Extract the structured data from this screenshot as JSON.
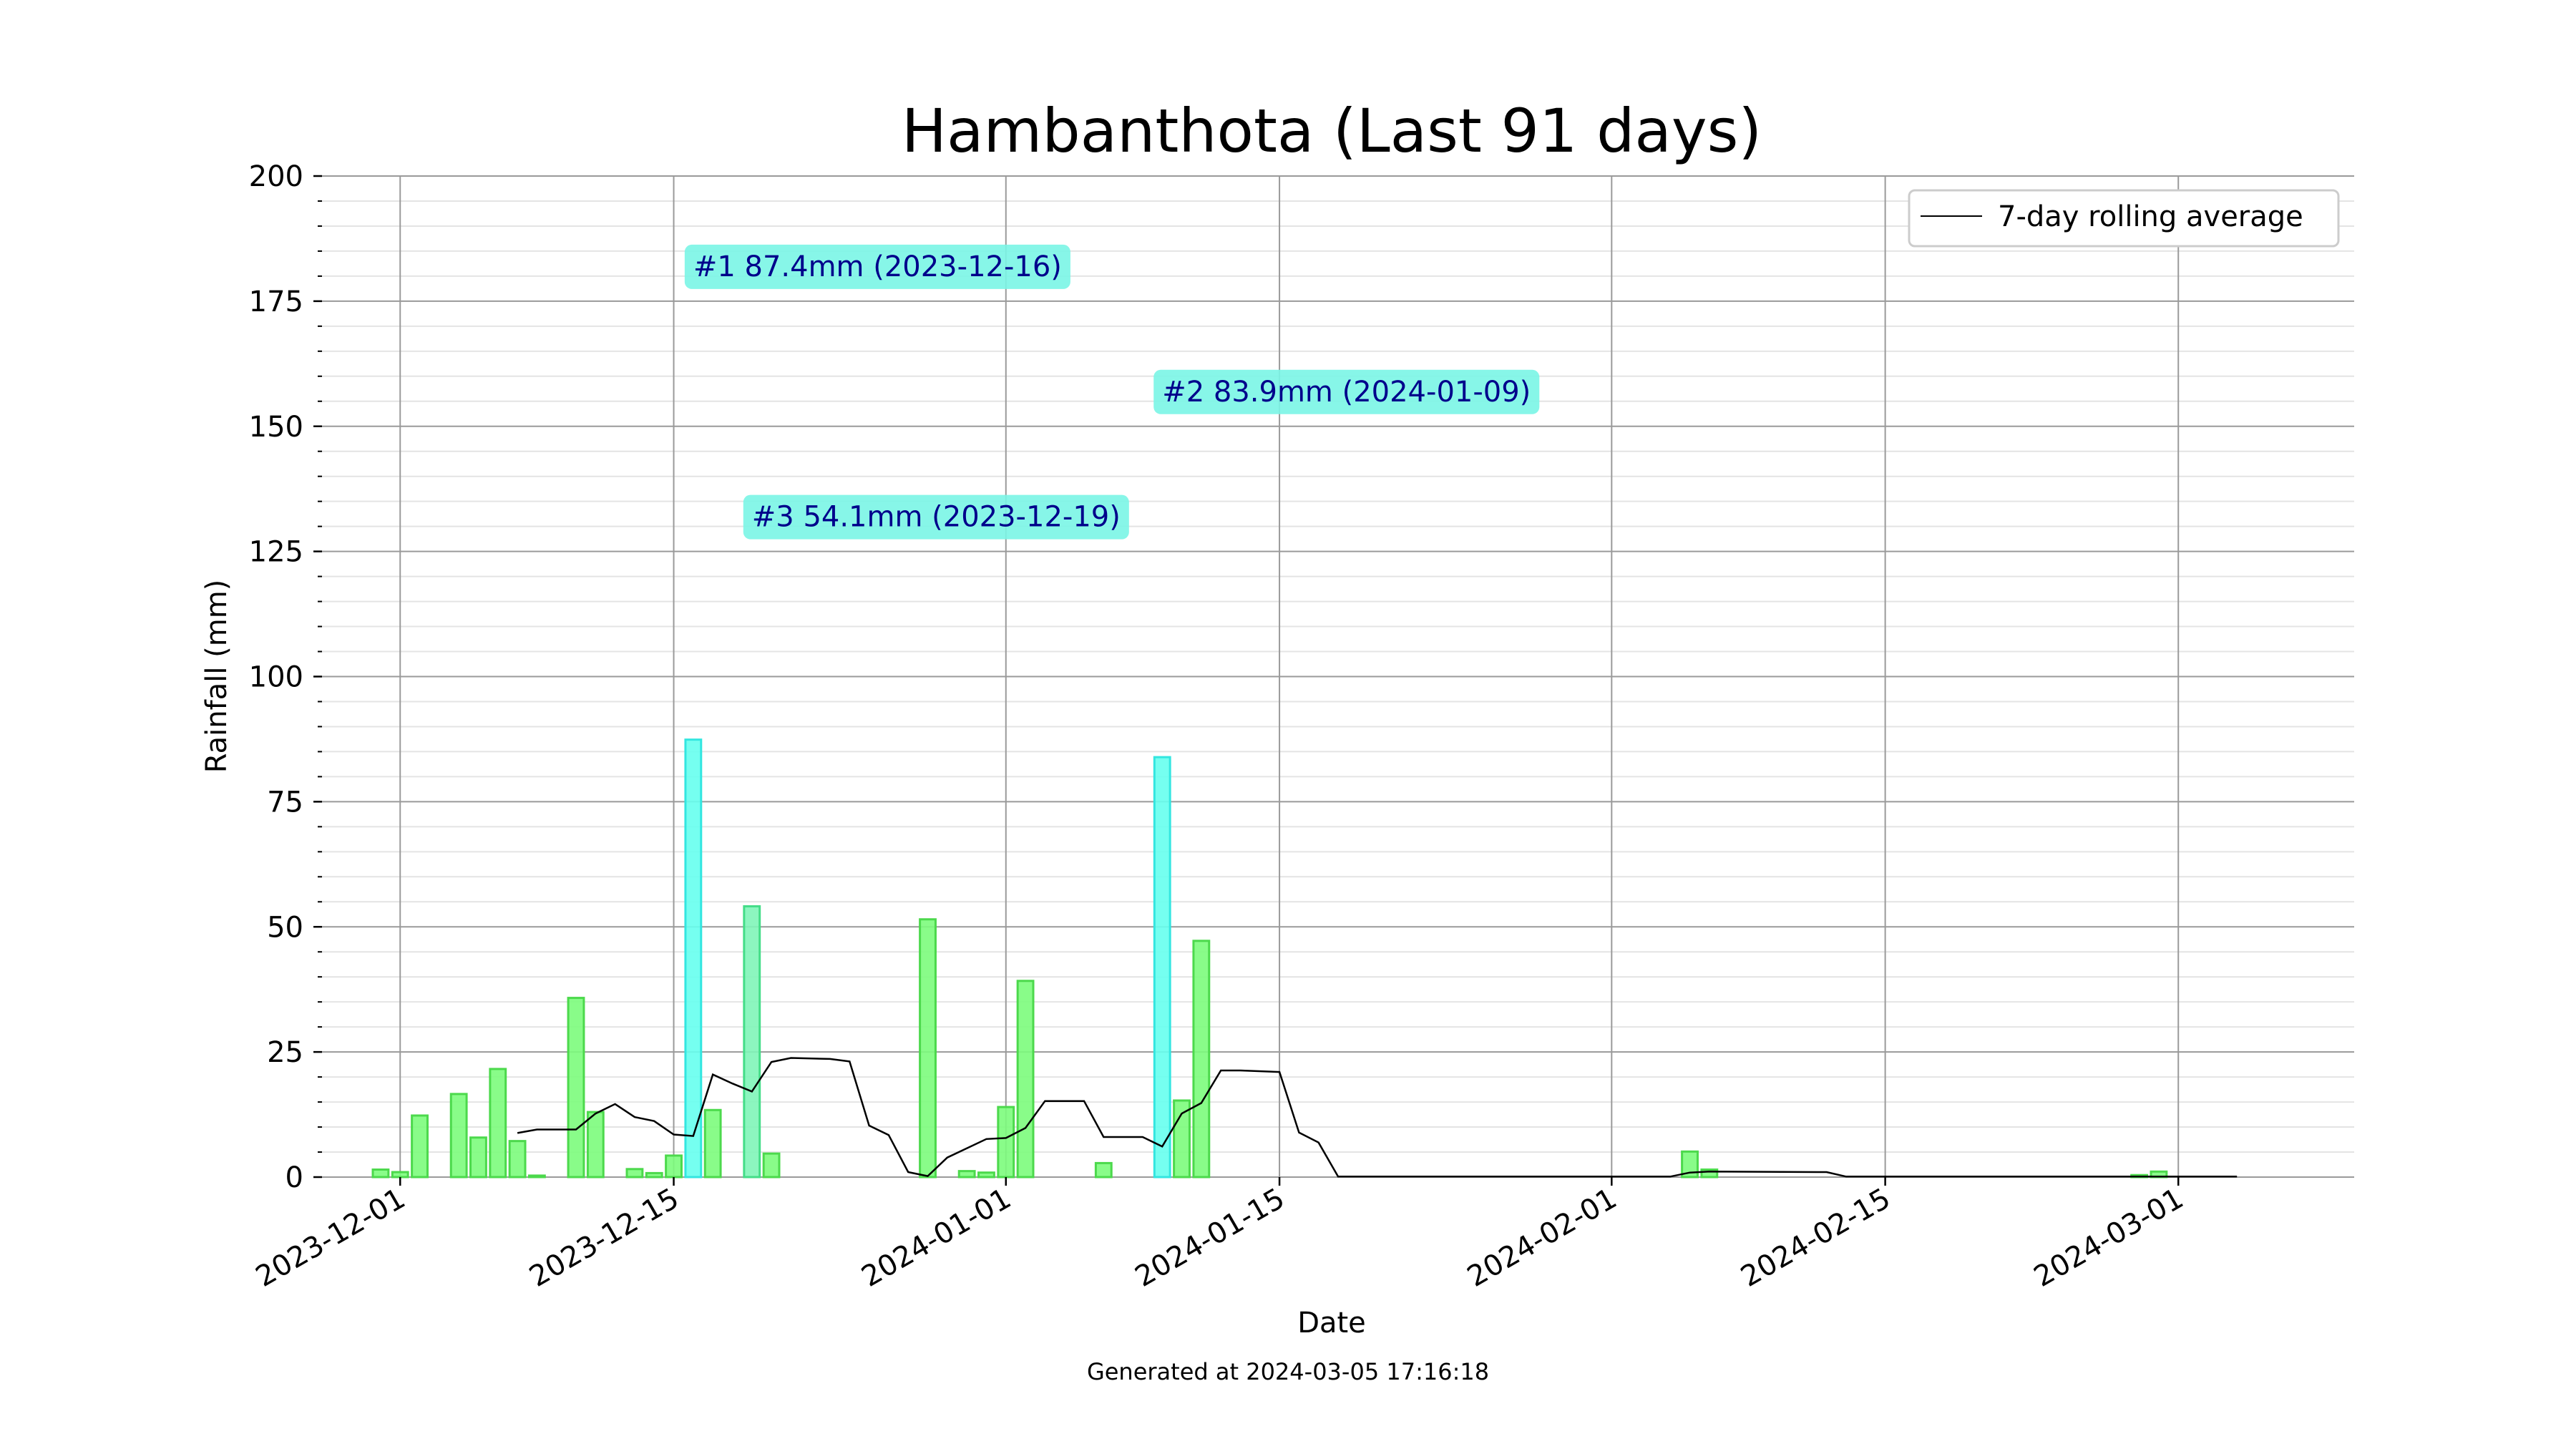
{
  "chart_data": {
    "type": "bar",
    "title": "Hambanthota (Last 91 days)",
    "xlabel": "Date",
    "ylabel": "Rainfall (mm)",
    "ylim": [
      0,
      200
    ],
    "xlim": [
      "2023-11-27",
      "2024-03-10"
    ],
    "yticks": [
      0,
      25,
      50,
      75,
      100,
      125,
      150,
      175,
      200
    ],
    "xticks": [
      "2023-12-01",
      "2023-12-15",
      "2024-01-01",
      "2024-01-15",
      "2024-02-01",
      "2024-02-15",
      "2024-03-01"
    ],
    "grid": true,
    "legend": {
      "position": "top-right",
      "entries": [
        "7-day rolling average"
      ]
    },
    "colors": {
      "bar": "#7cfc7c",
      "bar_edge": "#4cd94c",
      "highlight1": "#66ffee",
      "highlight3": "#7ff5b8",
      "annotation_box": "#7af5e6",
      "annotation_text": "#00008b",
      "line": "#000000"
    },
    "series": [
      {
        "name": "Rainfall (mm)",
        "x": [
          "2023-11-30",
          "2023-12-01",
          "2023-12-02",
          "2023-12-04",
          "2023-12-05",
          "2023-12-06",
          "2023-12-07",
          "2023-12-08",
          "2023-12-10",
          "2023-12-11",
          "2023-12-13",
          "2023-12-14",
          "2023-12-15",
          "2023-12-16",
          "2023-12-17",
          "2023-12-19",
          "2023-12-20",
          "2023-12-28",
          "2023-12-30",
          "2023-12-31",
          "2024-01-01",
          "2024-01-02",
          "2024-01-06",
          "2024-01-09",
          "2024-01-10",
          "2024-01-11",
          "2024-02-05",
          "2024-02-06",
          "2024-02-28",
          "2024-02-29"
        ],
        "values": [
          1.5,
          1.0,
          12.3,
          16.6,
          7.9,
          21.6,
          7.2,
          0.3,
          35.8,
          13.0,
          1.6,
          0.8,
          4.3,
          87.4,
          13.4,
          54.1,
          4.7,
          51.5,
          1.2,
          0.9,
          14.0,
          39.2,
          2.8,
          83.9,
          15.3,
          47.2,
          5.1,
          1.5,
          0.4,
          1.1
        ]
      },
      {
        "name": "7-day rolling average",
        "x": [
          "2023-12-07",
          "2023-12-08",
          "2023-12-10",
          "2023-12-11",
          "2023-12-12",
          "2023-12-13",
          "2023-12-14",
          "2023-12-15",
          "2023-12-16",
          "2023-12-17",
          "2023-12-18",
          "2023-12-19",
          "2023-12-20",
          "2023-12-21",
          "2023-12-23",
          "2023-12-24",
          "2023-12-25",
          "2023-12-26",
          "2023-12-27",
          "2023-12-28",
          "2023-12-29",
          "2023-12-31",
          "2024-01-01",
          "2024-01-02",
          "2024-01-03",
          "2024-01-05",
          "2024-01-06",
          "2024-01-08",
          "2024-01-09",
          "2024-01-10",
          "2024-01-11",
          "2024-01-12",
          "2024-01-13",
          "2024-01-15",
          "2024-01-16",
          "2024-01-17",
          "2024-01-18",
          "2024-02-04",
          "2024-02-05",
          "2024-02-06",
          "2024-02-12",
          "2024-02-13",
          "2024-03-04"
        ],
        "values": [
          8.8,
          9.5,
          9.5,
          12.7,
          14.6,
          12.0,
          11.2,
          8.5,
          8.2,
          20.5,
          18.7,
          17.1,
          23.0,
          23.8,
          23.6,
          23.1,
          10.3,
          8.4,
          1.0,
          0.2,
          3.9,
          7.6,
          7.8,
          9.8,
          15.2,
          15.2,
          8.0,
          8.0,
          6.1,
          12.7,
          14.8,
          21.3,
          21.3,
          21.0,
          8.9,
          6.9,
          0.1,
          0.1,
          0.9,
          1.1,
          1.0,
          0.1,
          0.1
        ]
      }
    ],
    "annotations": [
      {
        "label": "#1 87.4mm (2023-12-16)",
        "text_x": "2023-12-16",
        "text_y": 182
      },
      {
        "label": "#2 83.9mm (2024-01-09)",
        "text_x": "2024-01-09",
        "text_y": 157
      },
      {
        "label": "#3 54.1mm (2023-12-19)",
        "text_x": "2023-12-19",
        "text_y": 132
      }
    ],
    "highlights": [
      {
        "x": "2023-12-16",
        "rank": 1
      },
      {
        "x": "2024-01-09",
        "rank": 2
      },
      {
        "x": "2023-12-19",
        "rank": 3
      }
    ]
  },
  "footer": {
    "generated": "Generated at 2024-03-05 17:16:18"
  }
}
